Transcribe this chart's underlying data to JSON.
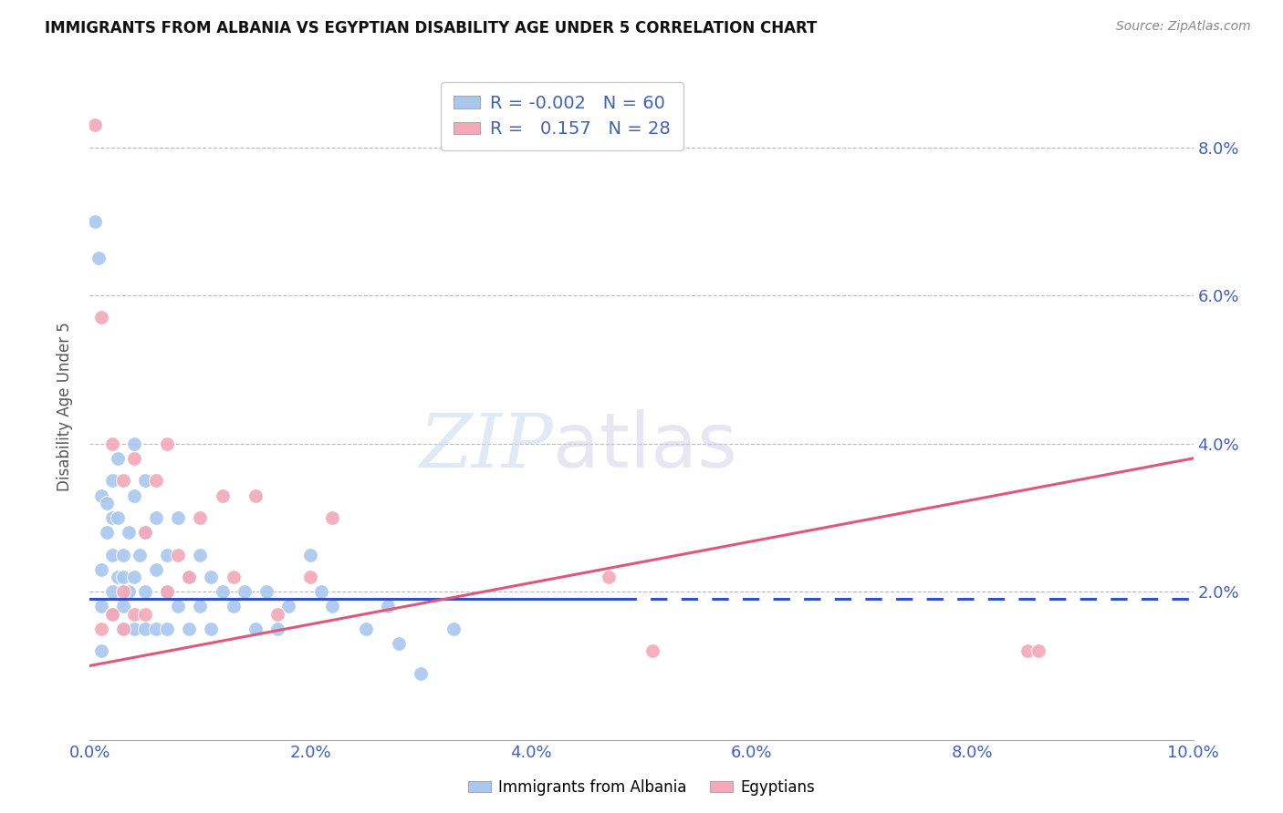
{
  "title": "IMMIGRANTS FROM ALBANIA VS EGYPTIAN DISABILITY AGE UNDER 5 CORRELATION CHART",
  "source": "Source: ZipAtlas.com",
  "xlabel": "",
  "ylabel": "Disability Age Under 5",
  "xlim": [
    0.0,
    0.1
  ],
  "ylim": [
    0.0,
    0.09
  ],
  "xticks": [
    0.0,
    0.02,
    0.04,
    0.06,
    0.08,
    0.1
  ],
  "yticks": [
    0.0,
    0.02,
    0.04,
    0.06,
    0.08
  ],
  "xticklabels": [
    "0.0%",
    "2.0%",
    "4.0%",
    "6.0%",
    "8.0%",
    "10.0%"
  ],
  "yticklabels_right": [
    "",
    "2.0%",
    "4.0%",
    "6.0%",
    "8.0%"
  ],
  "albania_color": "#A8C8F0",
  "egypt_color": "#F4A8B8",
  "line_albania_color": "#3050C8",
  "line_egypt_color": "#E05878",
  "r_albania": -0.002,
  "n_albania": 60,
  "r_egypt": 0.157,
  "n_egypt": 28,
  "legend_albania": "Immigrants from Albania",
  "legend_egypt": "Egyptians",
  "watermark_zip": "ZIP",
  "watermark_atlas": "atlas",
  "albania_line_x0": 0.0,
  "albania_line_y0": 0.019,
  "albania_line_x1": 0.048,
  "albania_line_y1": 0.019,
  "egypt_line_x0": 0.0,
  "egypt_line_y0": 0.01,
  "egypt_line_x1": 0.1,
  "egypt_line_y1": 0.038,
  "albania_x": [
    0.0005,
    0.0008,
    0.001,
    0.001,
    0.001,
    0.001,
    0.0015,
    0.0015,
    0.002,
    0.002,
    0.002,
    0.002,
    0.002,
    0.0025,
    0.0025,
    0.0025,
    0.003,
    0.003,
    0.003,
    0.003,
    0.0035,
    0.0035,
    0.004,
    0.004,
    0.004,
    0.004,
    0.0045,
    0.005,
    0.005,
    0.005,
    0.005,
    0.006,
    0.006,
    0.006,
    0.007,
    0.007,
    0.007,
    0.008,
    0.008,
    0.009,
    0.009,
    0.01,
    0.01,
    0.011,
    0.011,
    0.012,
    0.013,
    0.014,
    0.015,
    0.016,
    0.017,
    0.018,
    0.02,
    0.021,
    0.022,
    0.025,
    0.027,
    0.028,
    0.03,
    0.033
  ],
  "albania_y": [
    0.07,
    0.065,
    0.033,
    0.023,
    0.018,
    0.012,
    0.032,
    0.028,
    0.035,
    0.03,
    0.025,
    0.02,
    0.017,
    0.038,
    0.03,
    0.022,
    0.025,
    0.022,
    0.018,
    0.015,
    0.028,
    0.02,
    0.04,
    0.033,
    0.022,
    0.015,
    0.025,
    0.035,
    0.028,
    0.02,
    0.015,
    0.03,
    0.023,
    0.015,
    0.025,
    0.02,
    0.015,
    0.03,
    0.018,
    0.022,
    0.015,
    0.025,
    0.018,
    0.022,
    0.015,
    0.02,
    0.018,
    0.02,
    0.015,
    0.02,
    0.015,
    0.018,
    0.025,
    0.02,
    0.018,
    0.015,
    0.018,
    0.013,
    0.009,
    0.015
  ],
  "egypt_x": [
    0.0005,
    0.001,
    0.001,
    0.002,
    0.002,
    0.003,
    0.003,
    0.003,
    0.004,
    0.004,
    0.005,
    0.005,
    0.006,
    0.007,
    0.007,
    0.008,
    0.009,
    0.01,
    0.012,
    0.013,
    0.015,
    0.017,
    0.02,
    0.022,
    0.047,
    0.051,
    0.085,
    0.086
  ],
  "egypt_y": [
    0.083,
    0.057,
    0.015,
    0.04,
    0.017,
    0.035,
    0.02,
    0.015,
    0.038,
    0.017,
    0.028,
    0.017,
    0.035,
    0.04,
    0.02,
    0.025,
    0.022,
    0.03,
    0.033,
    0.022,
    0.033,
    0.017,
    0.022,
    0.03,
    0.022,
    0.012,
    0.012,
    0.012
  ]
}
